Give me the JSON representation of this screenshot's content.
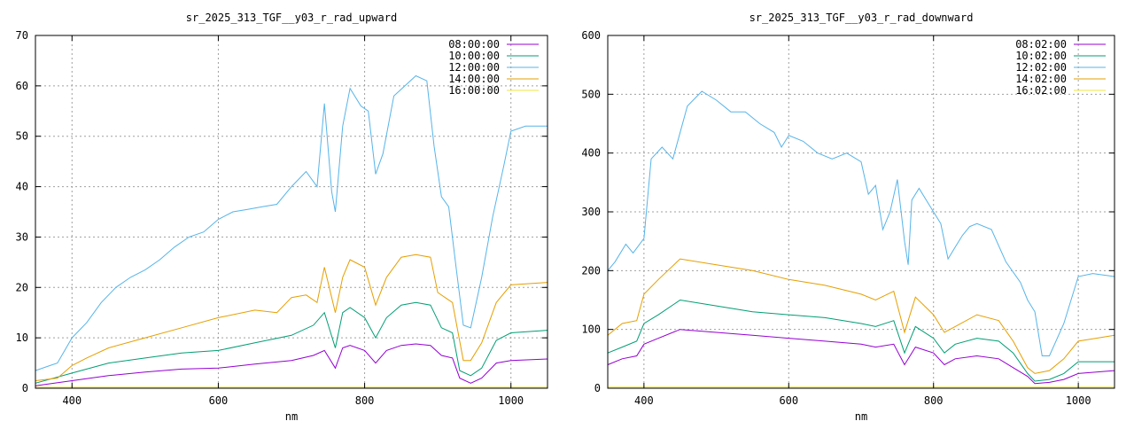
{
  "chart_data": [
    {
      "type": "line",
      "title": "sr_2025_313_TGF__y03_r_rad_upward",
      "xlabel": "nm",
      "ylabel": "",
      "xlim": [
        350,
        1050
      ],
      "ylim": [
        0,
        70
      ],
      "xticks": [
        400,
        600,
        800,
        1000
      ],
      "yticks": [
        0,
        10,
        20,
        30,
        40,
        50,
        60,
        70
      ],
      "grid": true,
      "legend_position": "top-right",
      "series": [
        {
          "name": "08:00:00",
          "color": "#9400d3",
          "x": [
            350,
            400,
            450,
            500,
            550,
            600,
            650,
            700,
            730,
            745,
            760,
            770,
            780,
            800,
            815,
            830,
            850,
            870,
            890,
            905,
            920,
            930,
            945,
            960,
            980,
            1000,
            1050
          ],
          "y": [
            0.5,
            1.5,
            2.5,
            3.2,
            3.8,
            4.0,
            4.8,
            5.5,
            6.5,
            7.5,
            4.0,
            8.0,
            8.5,
            7.5,
            5.0,
            7.5,
            8.5,
            8.8,
            8.5,
            6.5,
            6.0,
            2.0,
            1.0,
            2.0,
            5.0,
            5.5,
            5.8
          ]
        },
        {
          "name": "10:00:00",
          "color": "#009e73",
          "x": [
            350,
            400,
            450,
            500,
            550,
            600,
            650,
            700,
            730,
            745,
            760,
            770,
            780,
            800,
            815,
            830,
            850,
            870,
            890,
            905,
            920,
            930,
            945,
            960,
            980,
            1000,
            1050
          ],
          "y": [
            1.0,
            3.0,
            5.0,
            6.0,
            7.0,
            7.5,
            9.0,
            10.5,
            12.5,
            15.0,
            8.0,
            15.0,
            16.0,
            14.0,
            10.0,
            14.0,
            16.5,
            17.0,
            16.5,
            12.0,
            11.0,
            3.5,
            2.5,
            4.0,
            9.5,
            11.0,
            11.5
          ]
        },
        {
          "name": "12:00:00",
          "color": "#56b4e9",
          "x": [
            350,
            370,
            380,
            400,
            420,
            440,
            460,
            480,
            500,
            520,
            540,
            560,
            580,
            600,
            620,
            640,
            660,
            680,
            700,
            720,
            735,
            745,
            755,
            760,
            770,
            780,
            795,
            805,
            815,
            825,
            840,
            855,
            870,
            885,
            895,
            905,
            915,
            925,
            935,
            945,
            960,
            975,
            990,
            1000,
            1020,
            1050
          ],
          "y": [
            3.5,
            4.5,
            5.0,
            10.0,
            13.0,
            17.0,
            20.0,
            22.0,
            23.5,
            25.5,
            28.0,
            30.0,
            31.0,
            33.5,
            35.0,
            35.5,
            36.0,
            36.5,
            40.0,
            43.0,
            40.0,
            56.5,
            39.0,
            35.0,
            52.0,
            59.5,
            56.0,
            55.0,
            42.5,
            46.5,
            58.0,
            60.0,
            62.0,
            61.0,
            48.0,
            38.0,
            36.0,
            24.0,
            12.5,
            12.0,
            22.0,
            34.0,
            44.0,
            51.0,
            52.0,
            52.0
          ]
        },
        {
          "name": "14:00:00",
          "color": "#e69f00",
          "x": [
            350,
            380,
            400,
            420,
            450,
            500,
            550,
            600,
            650,
            680,
            700,
            720,
            735,
            745,
            760,
            770,
            780,
            800,
            815,
            830,
            850,
            870,
            890,
            900,
            910,
            920,
            935,
            945,
            960,
            980,
            1000,
            1050
          ],
          "y": [
            1.5,
            2.0,
            4.5,
            6.0,
            8.0,
            10.0,
            12.0,
            14.0,
            15.5,
            15.0,
            18.0,
            18.5,
            17.0,
            24.0,
            15.0,
            22.0,
            25.5,
            24.0,
            16.5,
            22.0,
            26.0,
            26.5,
            26.0,
            19.0,
            18.0,
            17.0,
            5.5,
            5.5,
            9.0,
            17.0,
            20.5,
            21.0
          ]
        },
        {
          "name": "16:00:00",
          "color": "#f0e442",
          "x": [
            350,
            1050
          ],
          "y": [
            0.2,
            0.2
          ]
        }
      ]
    },
    {
      "type": "line",
      "title": "sr_2025_313_TGF__y03_r_rad_downward",
      "xlabel": "nm",
      "ylabel": "",
      "xlim": [
        350,
        1050
      ],
      "ylim": [
        0,
        600
      ],
      "xticks": [
        400,
        600,
        800,
        1000
      ],
      "yticks": [
        0,
        100,
        200,
        300,
        400,
        500,
        600
      ],
      "grid": true,
      "legend_position": "top-right",
      "series": [
        {
          "name": "08:02:00",
          "color": "#9400d3",
          "x": [
            350,
            370,
            390,
            400,
            420,
            450,
            500,
            550,
            600,
            650,
            700,
            720,
            745,
            760,
            775,
            800,
            815,
            830,
            860,
            890,
            910,
            930,
            940,
            960,
            980,
            1000,
            1050
          ],
          "y": [
            40,
            50,
            55,
            75,
            85,
            100,
            95,
            90,
            85,
            80,
            75,
            70,
            75,
            40,
            70,
            60,
            40,
            50,
            55,
            50,
            35,
            20,
            8,
            10,
            15,
            25,
            30
          ]
        },
        {
          "name": "10:02:00",
          "color": "#009e73",
          "x": [
            350,
            370,
            390,
            400,
            420,
            450,
            500,
            550,
            600,
            650,
            700,
            720,
            745,
            760,
            775,
            800,
            815,
            830,
            860,
            890,
            910,
            930,
            940,
            960,
            980,
            1000,
            1050
          ],
          "y": [
            60,
            70,
            80,
            110,
            125,
            150,
            140,
            130,
            125,
            120,
            110,
            105,
            115,
            60,
            105,
            85,
            60,
            75,
            85,
            80,
            60,
            25,
            12,
            15,
            25,
            45,
            45
          ]
        },
        {
          "name": "12:02:00",
          "color": "#56b4e9",
          "x": [
            350,
            360,
            375,
            385,
            400,
            410,
            425,
            440,
            460,
            480,
            500,
            520,
            540,
            560,
            580,
            590,
            600,
            620,
            640,
            660,
            680,
            700,
            710,
            720,
            730,
            740,
            750,
            760,
            765,
            770,
            780,
            790,
            800,
            810,
            820,
            830,
            840,
            850,
            860,
            880,
            900,
            920,
            930,
            940,
            950,
            960,
            980,
            1000,
            1020,
            1050
          ],
          "y": [
            200,
            215,
            245,
            230,
            255,
            390,
            410,
            390,
            480,
            505,
            490,
            470,
            470,
            450,
            435,
            410,
            430,
            420,
            400,
            390,
            400,
            385,
            330,
            345,
            270,
            300,
            355,
            250,
            210,
            320,
            340,
            320,
            300,
            280,
            220,
            240,
            260,
            275,
            280,
            270,
            215,
            180,
            150,
            130,
            55,
            55,
            110,
            190,
            195,
            190
          ]
        },
        {
          "name": "14:02:00",
          "color": "#e69f00",
          "x": [
            350,
            370,
            390,
            400,
            420,
            450,
            500,
            550,
            600,
            650,
            700,
            720,
            745,
            760,
            775,
            800,
            815,
            830,
            860,
            890,
            910,
            930,
            940,
            960,
            980,
            1000,
            1050
          ],
          "y": [
            90,
            110,
            115,
            160,
            185,
            220,
            210,
            200,
            185,
            175,
            160,
            150,
            165,
            95,
            155,
            125,
            95,
            105,
            125,
            115,
            80,
            35,
            25,
            30,
            50,
            80,
            90
          ]
        },
        {
          "name": "16:02:00",
          "color": "#f0e442",
          "x": [
            350,
            1050
          ],
          "y": [
            2,
            2
          ]
        }
      ]
    }
  ]
}
